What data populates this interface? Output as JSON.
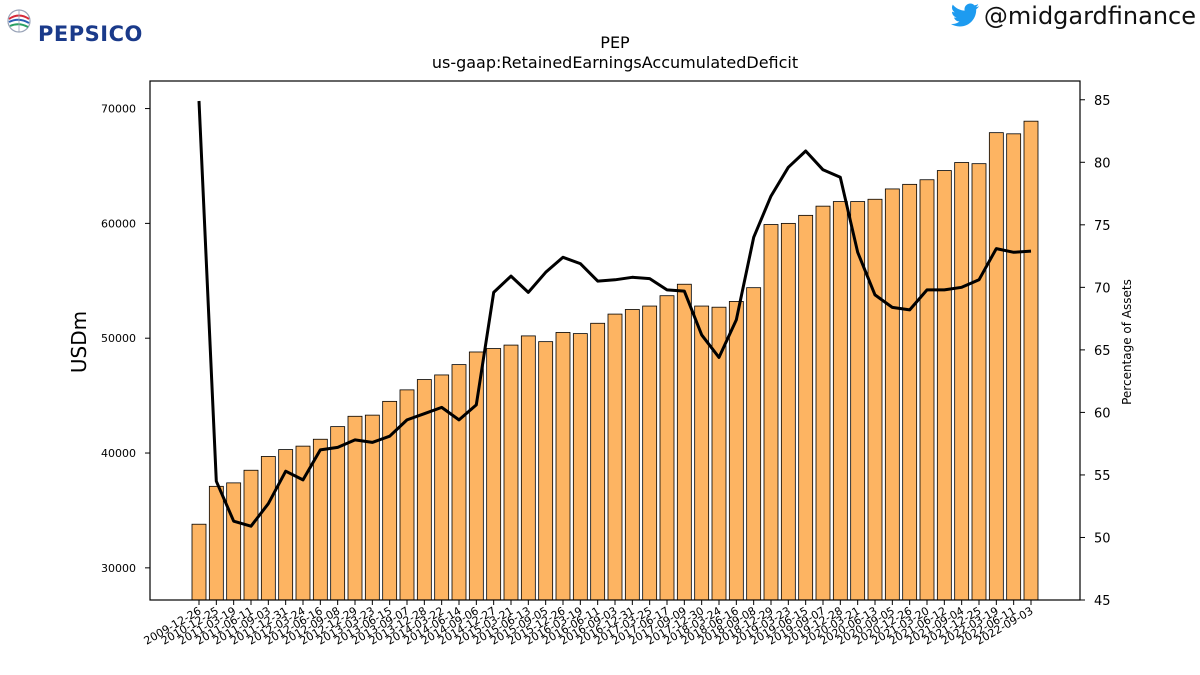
{
  "branding": {
    "logo_text": "PEPSICO",
    "handle": "@midgardfinance"
  },
  "colors": {
    "bar_fill": "#fdb462",
    "bar_stroke": "#000000",
    "line": "#000000",
    "brand_blue": "#1a3a8a",
    "twitter_blue": "#1d9bf0"
  },
  "chart_data": {
    "type": "bar",
    "title": "PEP",
    "subtitle": "us-gaap:RetainedEarningsAccumulatedDeficit",
    "ylabel": "USDm",
    "y2label": "Percentage of Assets",
    "ylim": [
      27200,
      72400
    ],
    "y2lim": [
      45,
      86.5
    ],
    "yticks": [
      30000,
      40000,
      50000,
      60000,
      70000
    ],
    "y2ticks": [
      45,
      50,
      55,
      60,
      65,
      70,
      75,
      80,
      85
    ],
    "categories": [
      "2009-12-26",
      "2010-12-25",
      "2011-03-19",
      "2011-06-11",
      "2011-09-03",
      "2011-12-31",
      "2012-03-24",
      "2012-06-16",
      "2012-09-08",
      "2012-12-29",
      "2013-03-23",
      "2013-06-15",
      "2013-09-07",
      "2013-12-28",
      "2014-03-22",
      "2014-06-14",
      "2014-09-06",
      "2014-12-27",
      "2015-03-21",
      "2015-06-13",
      "2015-09-05",
      "2015-12-26",
      "2016-03-19",
      "2016-06-11",
      "2016-09-03",
      "2016-12-31",
      "2017-03-25",
      "2017-06-17",
      "2017-09-09",
      "2017-12-30",
      "2018-03-24",
      "2018-06-16",
      "2018-09-08",
      "2018-12-29",
      "2019-03-23",
      "2019-06-15",
      "2019-09-07",
      "2019-12-28",
      "2020-03-21",
      "2020-06-13",
      "2020-09-05",
      "2020-12-26",
      "2021-03-20",
      "2021-06-12",
      "2021-09-04",
      "2021-12-25",
      "2022-03-19",
      "2022-06-11",
      "2022-09-03"
    ],
    "series": [
      {
        "kind": "bar",
        "axis": "left",
        "values": [
          33800,
          37100,
          37400,
          38500,
          39700,
          40300,
          40600,
          41200,
          42300,
          43200,
          43300,
          44500,
          45500,
          46400,
          46800,
          47700,
          48800,
          49100,
          49400,
          50200,
          49700,
          50500,
          50400,
          51300,
          52100,
          52500,
          52800,
          53700,
          54700,
          52800,
          52700,
          53200,
          54400,
          59900,
          60000,
          60700,
          61500,
          61900,
          61900,
          62100,
          63000,
          63400,
          63800,
          64600,
          65300,
          65200,
          67900,
          67800,
          68900
        ]
      },
      {
        "kind": "line",
        "axis": "right",
        "values": [
          84.9,
          54.5,
          51.3,
          50.9,
          52.7,
          55.3,
          54.6,
          57.0,
          57.2,
          57.8,
          57.6,
          58.1,
          59.4,
          59.9,
          60.4,
          59.4,
          60.6,
          69.6,
          70.9,
          69.6,
          71.2,
          72.4,
          71.9,
          70.5,
          70.6,
          70.8,
          70.7,
          69.8,
          69.7,
          66.2,
          64.4,
          67.4,
          74.0,
          77.3,
          79.6,
          80.9,
          79.4,
          78.8,
          72.8,
          69.4,
          68.4,
          68.2,
          69.8,
          69.8,
          70.0,
          70.6,
          73.1,
          72.8,
          72.9
        ]
      }
    ]
  }
}
